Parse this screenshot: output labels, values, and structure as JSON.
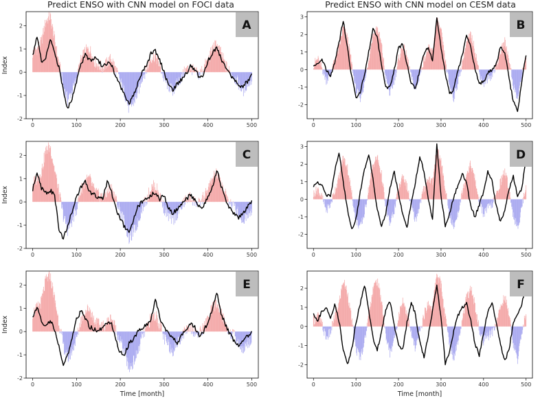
{
  "figure": {
    "column_titles": [
      "Predict ENSO with CNN model on FOCI data",
      "Predict ENSO with CNN model on CESM data"
    ],
    "ylabel": "Index",
    "xlabel": "Time [month]"
  },
  "colors": {
    "positive_bars": "#f4a9a9",
    "negative_bars": "#aaaaf0",
    "prediction_line": "#000000",
    "badge": "#bdbdbd"
  },
  "chart_data": [
    {
      "panel": "A",
      "type": "bar+line",
      "title": "Predict ENSO with CNN model on FOCI data",
      "ylabel": "Index",
      "xlabel": "",
      "xlim": [
        -15,
        515
      ],
      "ylim": [
        -2,
        2.6
      ],
      "xticks": [
        0,
        100,
        200,
        300,
        400,
        500
      ],
      "yticks": [
        -2,
        -1,
        0,
        1,
        2
      ],
      "observed_index": {
        "step": 10,
        "x_start": 0,
        "values": [
          0.8,
          1.0,
          1.3,
          2.2,
          2.4,
          1.4,
          0.4,
          -0.6,
          -1.2,
          -0.8,
          -0.3,
          0.5,
          0.9,
          1.0,
          0.5,
          0.3,
          0.2,
          0.4,
          0.6,
          0.1,
          -0.4,
          -0.9,
          -1.6,
          -1.3,
          -0.9,
          -0.2,
          0.1,
          0.6,
          0.7,
          0.3,
          -0.3,
          -0.6,
          -0.8,
          -0.5,
          -0.2,
          0.1,
          0.2,
          0.0,
          -0.1,
          0.2,
          0.5,
          1.0,
          1.2,
          0.8,
          0.3,
          0.0,
          -0.2,
          -0.5,
          -0.8,
          -0.5,
          -0.3
        ]
      },
      "predicted_index": {
        "step": 10,
        "x_start": 0,
        "values": [
          0.7,
          1.5,
          0.5,
          0.6,
          1.4,
          0.8,
          0.2,
          -0.8,
          -1.6,
          -1.1,
          -0.4,
          0.3,
          0.8,
          0.5,
          0.6,
          0.5,
          0.2,
          0.4,
          0.3,
          -0.2,
          -0.6,
          -1.0,
          -1.4,
          -1.0,
          -0.5,
          0.0,
          0.3,
          0.8,
          0.9,
          0.5,
          0.0,
          -0.6,
          -0.8,
          -0.5,
          -0.3,
          -0.1,
          0.3,
          0.1,
          -0.2,
          -0.1,
          0.5,
          0.8,
          1.1,
          0.6,
          0.2,
          -0.1,
          -0.3,
          -0.6,
          -0.6,
          -0.4,
          -0.1
        ]
      }
    },
    {
      "panel": "B",
      "type": "bar+line",
      "title": "Predict ENSO with CNN model on CESM data",
      "ylabel": "",
      "xlabel": "",
      "xlim": [
        -15,
        515
      ],
      "ylim": [
        -2.8,
        3.3
      ],
      "xticks": [
        0,
        100,
        200,
        300,
        400,
        500
      ],
      "yticks": [
        -2,
        -1,
        0,
        1,
        2,
        3
      ],
      "observed_index": {
        "step": 10,
        "x_start": 0,
        "values": [
          0.3,
          0.6,
          0.1,
          -0.6,
          -0.3,
          0.5,
          1.2,
          2.4,
          1.8,
          0.3,
          -1.2,
          -1.6,
          -0.8,
          0.6,
          2.0,
          2.4,
          1.4,
          -0.5,
          -1.4,
          -0.6,
          0.5,
          1.4,
          0.7,
          -0.4,
          -1.2,
          -0.3,
          0.6,
          1.2,
          1.0,
          2.8,
          2.2,
          0.5,
          -0.9,
          -1.6,
          -0.7,
          0.4,
          1.5,
          2.0,
          1.1,
          -0.2,
          -0.8,
          -0.5,
          -0.3,
          0.2,
          1.0,
          1.6,
          0.6,
          -0.9,
          -1.7,
          -0.4,
          0.8
        ]
      },
      "predicted_index": {
        "step": 10,
        "x_start": 0,
        "values": [
          0.2,
          0.4,
          0.6,
          0.0,
          -0.4,
          0.4,
          1.5,
          2.8,
          1.2,
          -0.4,
          -1.6,
          -1.3,
          -0.3,
          1.0,
          2.4,
          1.8,
          0.3,
          -1.0,
          -1.0,
          0.0,
          1.2,
          1.5,
          0.3,
          -0.8,
          -1.1,
          0.0,
          0.9,
          1.3,
          0.5,
          3.0,
          1.3,
          -0.2,
          -1.4,
          -1.1,
          0.0,
          0.8,
          2.0,
          1.3,
          0.0,
          -0.8,
          -0.7,
          -0.2,
          0.0,
          0.3,
          1.3,
          1.0,
          -0.5,
          -1.8,
          -2.4,
          -0.7,
          0.9
        ]
      }
    },
    {
      "panel": "C",
      "type": "bar+line",
      "title": "",
      "ylabel": "Index",
      "xlabel": "",
      "xlim": [
        -15,
        515
      ],
      "ylim": [
        -2,
        2.6
      ],
      "xticks": [
        0,
        100,
        200,
        300,
        400,
        500
      ],
      "yticks": [
        -2,
        -1,
        0,
        1,
        2
      ],
      "observed_index": {
        "step": 10,
        "x_start": 0,
        "values": [
          0.8,
          1.0,
          1.3,
          2.2,
          2.4,
          1.4,
          0.4,
          -0.6,
          -1.2,
          -0.8,
          -0.3,
          0.5,
          0.9,
          1.0,
          0.5,
          0.3,
          0.2,
          0.4,
          0.6,
          0.1,
          -0.4,
          -0.9,
          -1.6,
          -1.3,
          -0.9,
          -0.2,
          0.1,
          0.6,
          0.7,
          0.3,
          -0.3,
          -0.6,
          -0.8,
          -0.5,
          -0.2,
          0.1,
          0.2,
          0.0,
          -0.1,
          0.2,
          0.5,
          1.0,
          1.2,
          0.8,
          0.3,
          0.0,
          -0.2,
          -0.5,
          -0.8,
          -0.5,
          -0.3
        ]
      },
      "predicted_index": {
        "step": 10,
        "x_start": 0,
        "values": [
          0.5,
          1.3,
          0.6,
          0.4,
          0.5,
          0.3,
          -1.2,
          -1.6,
          -1.0,
          -0.4,
          0.2,
          0.6,
          0.9,
          0.4,
          0.3,
          0.2,
          0.1,
          0.9,
          0.4,
          -0.3,
          -0.7,
          -1.1,
          -1.3,
          -0.8,
          -0.2,
          0.0,
          0.1,
          0.3,
          0.4,
          0.1,
          0.3,
          -0.3,
          -0.5,
          -0.3,
          -0.1,
          0.1,
          0.3,
          0.1,
          -0.2,
          -0.2,
          0.2,
          0.6,
          1.4,
          0.7,
          0.1,
          -0.3,
          -0.5,
          -0.7,
          -0.5,
          -0.2,
          0.0
        ]
      }
    },
    {
      "panel": "D",
      "type": "bar+line",
      "title": "",
      "ylabel": "",
      "xlabel": "",
      "xlim": [
        -15,
        515
      ],
      "ylim": [
        -2.8,
        3.3
      ],
      "xticks": [
        0,
        100,
        200,
        300,
        400,
        500
      ],
      "yticks": [
        -2,
        -1,
        0,
        1,
        2,
        3
      ],
      "observed_index": {
        "step": 10,
        "x_start": 0,
        "values": [
          0.3,
          0.6,
          0.1,
          -0.6,
          -0.3,
          0.5,
          1.2,
          2.4,
          1.8,
          0.3,
          -1.2,
          -1.6,
          -0.8,
          0.6,
          2.0,
          2.4,
          1.4,
          -0.5,
          -1.4,
          -0.6,
          0.5,
          1.4,
          0.7,
          -0.4,
          -1.2,
          -0.3,
          0.6,
          1.2,
          1.0,
          2.8,
          2.2,
          0.5,
          -0.9,
          -1.6,
          -0.7,
          0.4,
          1.5,
          2.0,
          1.1,
          -0.2,
          -0.8,
          -0.5,
          -0.3,
          0.2,
          1.0,
          1.6,
          0.6,
          -0.9,
          -1.7,
          -0.4,
          0.8
        ]
      },
      "predicted_index": {
        "step": 10,
        "x_start": 0,
        "values": [
          0.7,
          1.0,
          0.8,
          0.2,
          0.2,
          1.6,
          2.7,
          1.0,
          -0.6,
          -1.7,
          -1.1,
          0.4,
          1.7,
          2.6,
          1.2,
          -0.6,
          -1.6,
          -0.8,
          0.6,
          1.6,
          0.3,
          -0.9,
          -1.6,
          -0.2,
          1.0,
          2.4,
          1.6,
          0.0,
          -1.1,
          3.1,
          0.2,
          -1.5,
          -0.8,
          0.1,
          0.8,
          1.5,
          0.9,
          -0.4,
          -1.0,
          -0.3,
          0.4,
          1.6,
          1.0,
          -0.4,
          -1.3,
          -0.6,
          0.6,
          1.3,
          0.2,
          0.6,
          2.4
        ]
      }
    },
    {
      "panel": "E",
      "type": "bar+line",
      "title": "",
      "ylabel": "Index",
      "xlabel": "Time [month]",
      "xlim": [
        -15,
        515
      ],
      "ylim": [
        -2,
        2.6
      ],
      "xticks": [
        0,
        100,
        200,
        300,
        400,
        500
      ],
      "yticks": [
        -2,
        -1,
        0,
        1,
        2
      ],
      "observed_index": {
        "step": 10,
        "x_start": 0,
        "values": [
          0.8,
          1.0,
          1.3,
          2.2,
          2.4,
          1.4,
          0.4,
          -0.6,
          -1.2,
          -0.8,
          -0.3,
          0.5,
          0.9,
          1.0,
          0.5,
          0.3,
          0.2,
          0.4,
          0.6,
          0.1,
          -0.4,
          -0.9,
          -1.6,
          -1.3,
          -0.9,
          -0.2,
          0.1,
          0.6,
          0.7,
          0.3,
          -0.3,
          -0.6,
          -0.8,
          -0.5,
          -0.2,
          0.1,
          0.2,
          0.0,
          -0.1,
          0.2,
          0.5,
          1.0,
          1.2,
          0.8,
          0.3,
          0.0,
          -0.2,
          -0.5,
          -0.8,
          -0.5,
          -0.3
        ]
      },
      "predicted_index": {
        "step": 10,
        "x_start": 0,
        "values": [
          0.6,
          1.1,
          0.4,
          0.2,
          0.5,
          0.1,
          -0.6,
          -1.5,
          -1.0,
          -0.3,
          0.5,
          0.9,
          0.6,
          0.2,
          0.1,
          0.0,
          0.2,
          0.4,
          0.3,
          -0.4,
          -0.9,
          -1.0,
          -0.5,
          -0.3,
          0.0,
          0.1,
          0.3,
          0.5,
          1.4,
          0.6,
          0.2,
          -0.1,
          -0.3,
          -0.5,
          -0.2,
          0.1,
          0.3,
          0.2,
          -0.2,
          0.0,
          0.4,
          0.9,
          1.7,
          0.8,
          0.3,
          -0.1,
          -0.4,
          -0.6,
          -0.4,
          -0.2,
          0.0
        ]
      }
    },
    {
      "panel": "F",
      "type": "bar+line",
      "title": "",
      "ylabel": "",
      "xlabel": "Time [month]",
      "xlim": [
        -15,
        515
      ],
      "ylim": [
        -2.7,
        2.9
      ],
      "xticks": [
        0,
        100,
        200,
        300,
        400,
        500
      ],
      "yticks": [
        -2,
        -1,
        0,
        1,
        2
      ],
      "observed_index": {
        "step": 10,
        "x_start": 0,
        "values": [
          0.3,
          0.6,
          0.1,
          -0.6,
          -0.3,
          0.5,
          1.2,
          2.4,
          1.8,
          0.3,
          -1.2,
          -1.6,
          -0.8,
          0.6,
          2.0,
          2.4,
          1.4,
          -0.5,
          -1.4,
          -0.6,
          0.5,
          1.4,
          0.7,
          -0.4,
          -1.2,
          -0.3,
          0.6,
          1.2,
          1.0,
          2.8,
          2.2,
          0.5,
          -0.9,
          -1.6,
          -0.7,
          0.4,
          1.5,
          2.0,
          1.1,
          -0.2,
          -0.8,
          -0.5,
          -0.3,
          0.2,
          1.0,
          1.6,
          0.6,
          -0.9,
          -1.7,
          -0.4,
          0.8
        ]
      },
      "predicted_index": {
        "step": 10,
        "x_start": 0,
        "values": [
          0.6,
          0.3,
          0.8,
          1.0,
          0.4,
          1.2,
          0.3,
          -1.2,
          -2.0,
          -1.2,
          0.2,
          1.2,
          2.2,
          0.8,
          -0.6,
          -1.2,
          -0.3,
          0.9,
          1.3,
          0.1,
          -1.0,
          -1.2,
          0.2,
          1.3,
          0.6,
          -0.8,
          -1.6,
          -0.5,
          0.8,
          2.1,
          0.5,
          -2.0,
          -1.3,
          -0.2,
          0.6,
          1.0,
          1.2,
          0.3,
          -0.9,
          -1.5,
          -0.4,
          0.8,
          1.3,
          0.2,
          -1.0,
          -1.8,
          -1.2,
          0.2,
          0.6,
          1.2,
          2.2
        ]
      }
    }
  ]
}
